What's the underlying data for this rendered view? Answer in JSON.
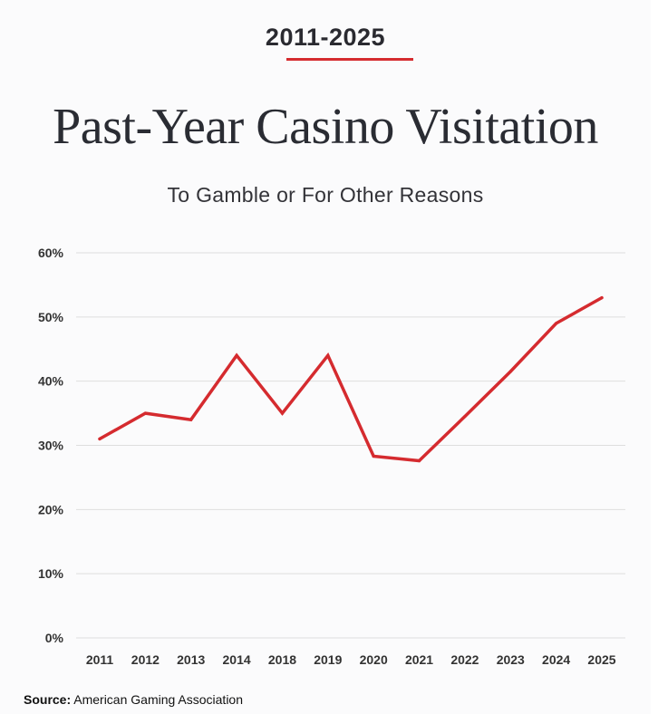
{
  "header": {
    "period": "2011-2025",
    "title": "Past-Year Casino Visitation",
    "subtitle": "To Gamble or For Other Reasons"
  },
  "footer": {
    "source_label": "Source:",
    "source_text": "American Gaming Association"
  },
  "colors": {
    "accent": "#d52b2f",
    "grid": "#dedede",
    "title": "#2a2c33",
    "tick": "#333333"
  },
  "chart_data": {
    "type": "line",
    "title": "Past-Year Casino Visitation",
    "subtitle": "To Gamble or For Other Reasons",
    "xlabel": "",
    "ylabel": "",
    "categories": [
      "2011",
      "2012",
      "2013",
      "2014",
      "2018",
      "2019",
      "2020",
      "2021",
      "2022",
      "2023",
      "2024",
      "2025"
    ],
    "series": [
      {
        "values": [
          31,
          35,
          34,
          44,
          35,
          44,
          28.3,
          27.6,
          34.5,
          41.5,
          49,
          53
        ]
      }
    ],
    "ylim": [
      0,
      60
    ],
    "yticks": [
      0,
      10,
      20,
      30,
      40,
      50,
      60
    ],
    "ytick_labels": [
      "0%",
      "10%",
      "20%",
      "30%",
      "40%",
      "50%",
      "60%"
    ],
    "grid": true,
    "legend": "none",
    "line_color": "#d52b2f"
  }
}
